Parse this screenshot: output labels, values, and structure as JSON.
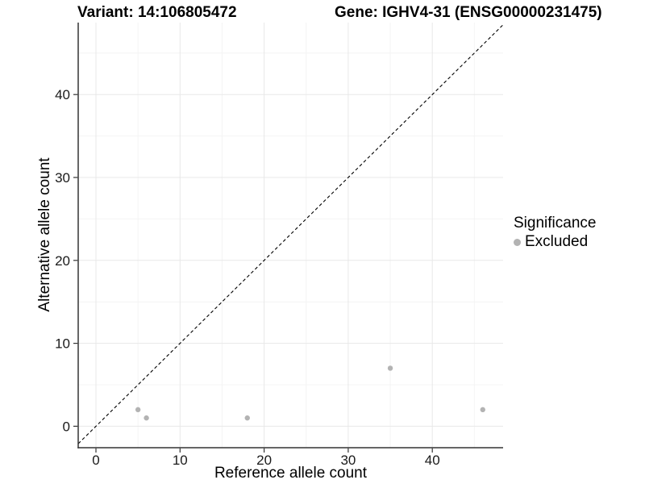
{
  "titles": {
    "left": "Variant: 14:106805472",
    "right": "Gene: IGHV4-31 (ENSG00000231475)"
  },
  "chart_data": {
    "type": "scatter",
    "xlabel": "Reference allele count",
    "ylabel": "Alternative allele count",
    "xlim": [
      -2.1,
      48.4
    ],
    "ylim": [
      -2.6,
      48.7
    ],
    "x_major_ticks": [
      0,
      10,
      20,
      30,
      40
    ],
    "y_major_ticks": [
      0,
      10,
      20,
      30,
      40
    ],
    "x_minor_gridlines": [
      5,
      15,
      25,
      35,
      45
    ],
    "y_minor_gridlines": [
      5,
      15,
      25,
      35,
      45
    ],
    "grid": true,
    "series": [
      {
        "name": "Excluded",
        "color": "#b3b3b3",
        "points": [
          [
            5,
            2
          ],
          [
            6,
            1
          ],
          [
            18,
            1
          ],
          [
            35,
            7
          ],
          [
            46,
            2
          ]
        ]
      }
    ],
    "reference_line": {
      "type": "identity",
      "style": "dashed",
      "color": "#000000"
    },
    "legend": {
      "title": "Significance",
      "position": "right",
      "entries": [
        {
          "label": "Excluded",
          "color": "#b3b3b3"
        }
      ]
    }
  },
  "colors": {
    "background": "#ffffff",
    "grid_major": "#e8e8e8",
    "grid_minor": "#f4f4f4",
    "axis_line": "#333333",
    "tick_text": "#1a1a1a",
    "title_text": "#000000"
  }
}
